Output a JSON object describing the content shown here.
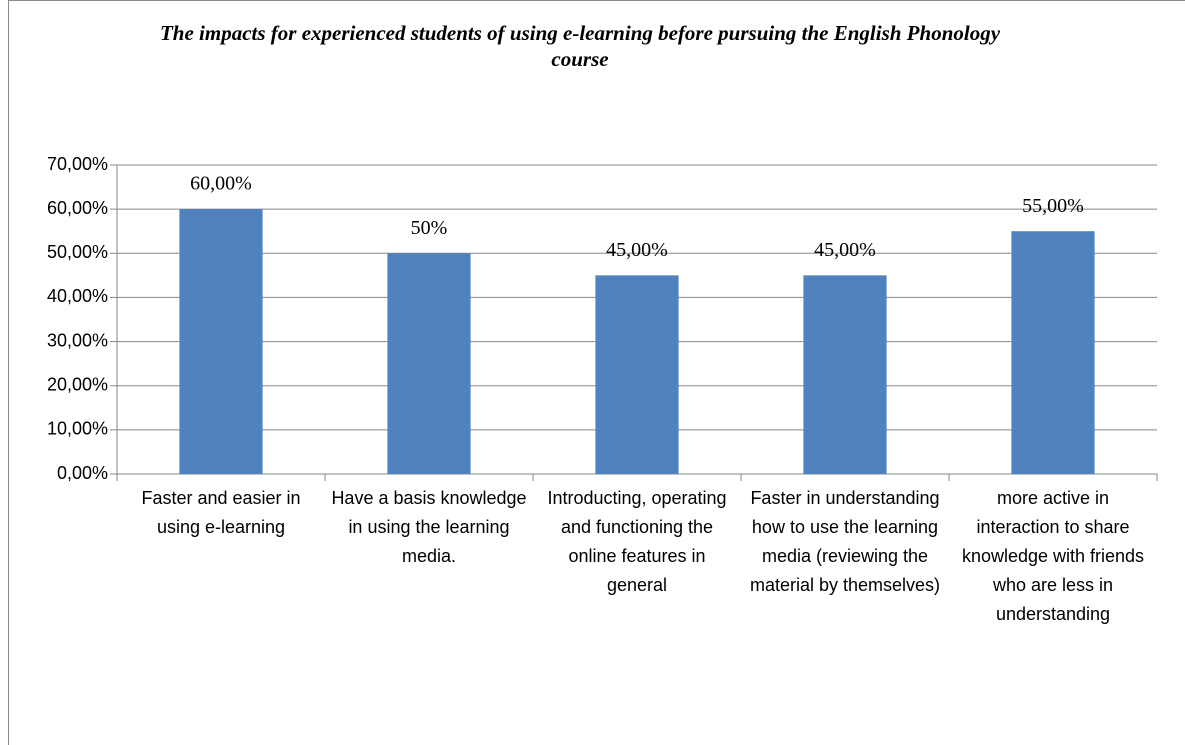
{
  "chart_data": {
    "type": "bar",
    "title": "The impacts for experienced students of using e-learning before pursuing the English Phonology course",
    "categories": [
      "Faster and easier in using e-learning",
      "Have a basis knowledge in using the learning media.",
      "Introducting, operating and functioning the online features in general",
      "Faster in understanding how to use the learning media (reviewing the material by themselves)",
      "more active in interaction to share knowledge with friends who are less in understanding"
    ],
    "values": [
      60,
      50,
      45,
      45,
      55
    ],
    "value_labels": [
      "60,00%",
      "50%",
      "45,00%",
      "45,00%",
      "55,00%"
    ],
    "color": "#4f81bd",
    "ylim": [
      0,
      70
    ],
    "yticks": [
      {
        "value": 0,
        "label": "0,00%"
      },
      {
        "value": 10,
        "label": "10,00%"
      },
      {
        "value": 20,
        "label": "20,00%"
      },
      {
        "value": 30,
        "label": "30,00%"
      },
      {
        "value": 40,
        "label": "40,00%"
      },
      {
        "value": 50,
        "label": "50,00%"
      },
      {
        "value": 60,
        "label": "60,00%"
      },
      {
        "value": 70,
        "label": "70,00%"
      }
    ],
    "grid": true
  }
}
